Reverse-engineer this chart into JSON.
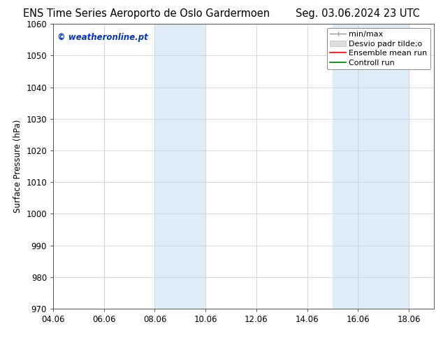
{
  "title_left": "ENS Time Series Aeroporto de Oslo Gardermoen",
  "title_right": "Seg. 03.06.2024 23 UTC",
  "ylabel": "Surface Pressure (hPa)",
  "ylim": [
    970,
    1060
  ],
  "yticks": [
    970,
    980,
    990,
    1000,
    1010,
    1020,
    1030,
    1040,
    1050,
    1060
  ],
  "xlim_start": 4.06,
  "xlim_end": 19.06,
  "xtick_labels": [
    "04.06",
    "06.06",
    "08.06",
    "10.06",
    "12.06",
    "14.06",
    "16.06",
    "18.06"
  ],
  "xtick_positions": [
    4.06,
    6.06,
    8.06,
    10.06,
    12.06,
    14.06,
    16.06,
    18.06
  ],
  "shaded_bands": [
    {
      "x_start": 8.06,
      "x_end": 10.06,
      "color": "#ddeef8"
    },
    {
      "x_start": 15.06,
      "x_end": 18.06,
      "color": "#ddeef8"
    }
  ],
  "bg_color": "#ffffff",
  "plot_bg_color": "#ffffff",
  "grid_color": "#cccccc",
  "watermark_text": "© weatheronline.pt",
  "watermark_color": "#0033cc",
  "legend_entries": [
    {
      "label": "min/max"
    },
    {
      "label": "Desvio padr tilde;o"
    },
    {
      "label": "Ensemble mean run"
    },
    {
      "label": "Controll run"
    }
  ],
  "title_fontsize": 10.5,
  "tick_fontsize": 8.5,
  "ylabel_fontsize": 8.5,
  "legend_fontsize": 8,
  "watermark_fontsize": 8.5
}
